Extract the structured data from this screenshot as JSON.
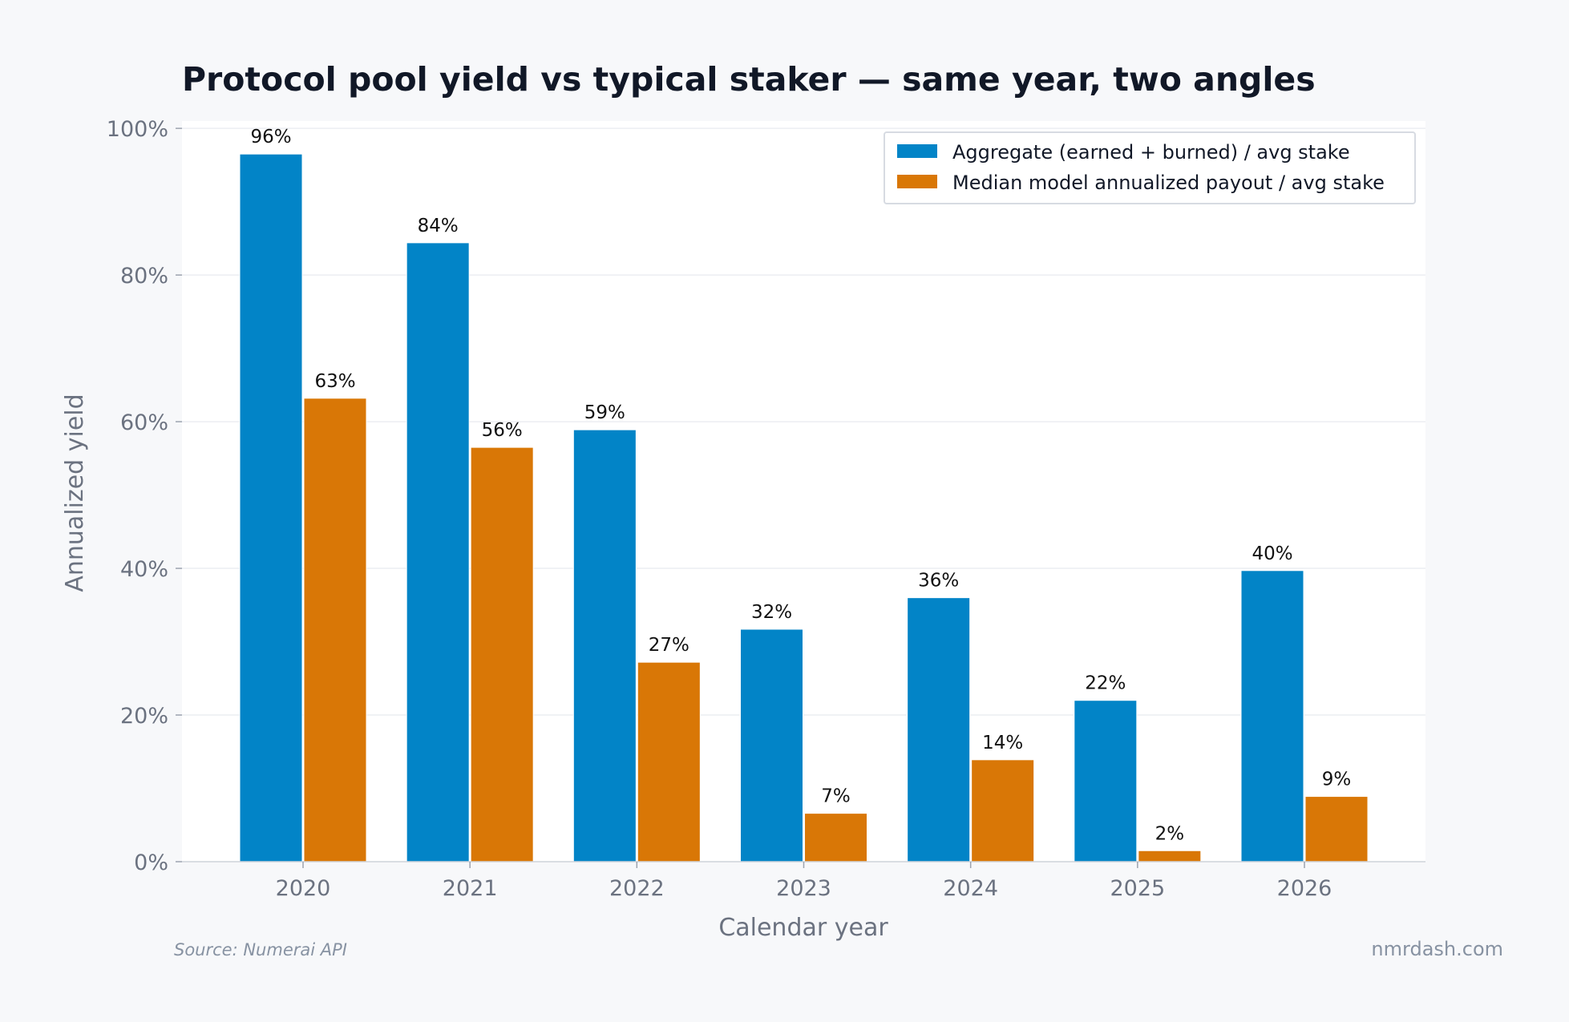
{
  "chart_data": {
    "type": "bar",
    "title": "Protocol pool yield vs typical staker — same year, two angles",
    "xlabel": "Calendar year",
    "ylabel": "Annualized yield",
    "categories": [
      "2020",
      "2021",
      "2022",
      "2023",
      "2024",
      "2025",
      "2026"
    ],
    "series": [
      {
        "name": "Aggregate (earned + burned) / avg stake",
        "color": "#0284c7",
        "values": [
          96.5,
          84.4,
          58.9,
          31.7,
          36.0,
          22.0,
          39.7
        ],
        "labels": [
          "96%",
          "84%",
          "59%",
          "32%",
          "36%",
          "22%",
          "40%"
        ]
      },
      {
        "name": "Median model annualized payout / avg stake",
        "color": "#d97706",
        "values": [
          63.2,
          56.5,
          27.2,
          6.6,
          13.9,
          1.5,
          8.9
        ],
        "labels": [
          "63%",
          "56%",
          "27%",
          "7%",
          "14%",
          "2%",
          "9%"
        ]
      }
    ],
    "ylim": [
      0,
      101
    ],
    "yticks": [
      0,
      20,
      40,
      60,
      80,
      100
    ],
    "ytick_labels": [
      "0%",
      "20%",
      "40%",
      "60%",
      "80%",
      "100%"
    ],
    "grid": true,
    "legend_position": "top-right"
  },
  "footer": {
    "source": "Source: Numerai API",
    "brand": "nmrdash.com"
  }
}
